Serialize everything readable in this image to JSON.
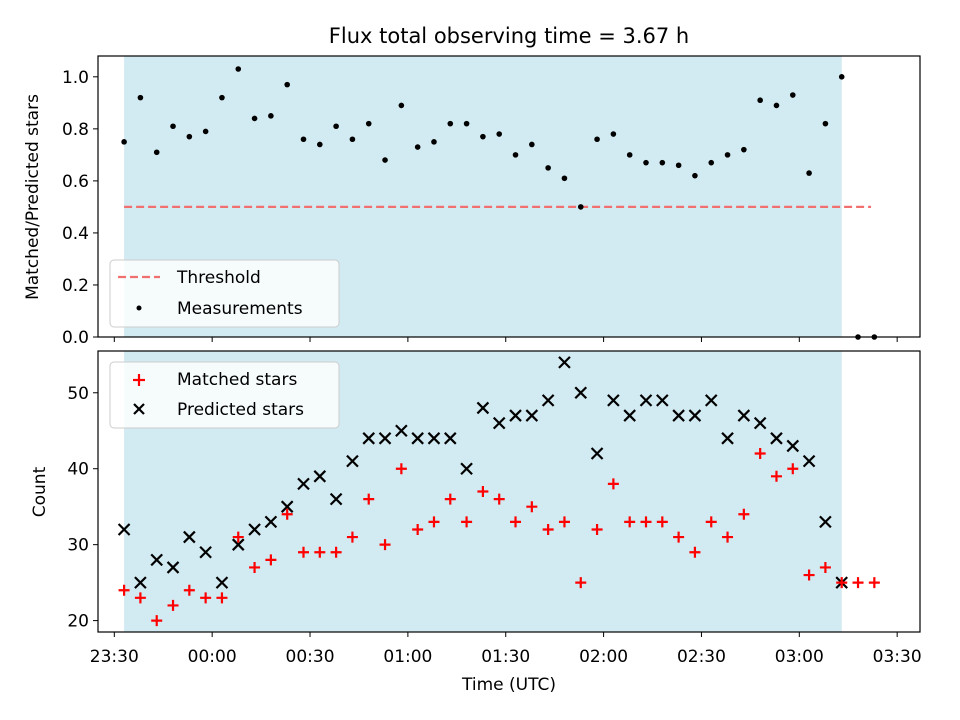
{
  "chart_data": {
    "type": "scatter",
    "title": "Flux total observing time = 3.67 h",
    "xlabel": "Time (UTC)",
    "x_ticks": [
      "23:30",
      "00:00",
      "00:30",
      "01:00",
      "01:30",
      "02:00",
      "02:30",
      "03:00",
      "03:30"
    ],
    "x_range": [
      "23:25",
      "03:37"
    ],
    "observing_window": [
      "23:33",
      "03:13"
    ],
    "colors": {
      "threshold": "#f07070",
      "window": "#add8e6",
      "matched": "#ff0000",
      "predicted": "#000000",
      "measurements": "#000000"
    },
    "times": [
      "23:33",
      "23:38",
      "23:43",
      "23:48",
      "23:53",
      "23:58",
      "00:03",
      "00:08",
      "00:13",
      "00:18",
      "00:23",
      "00:28",
      "00:33",
      "00:38",
      "00:43",
      "00:48",
      "00:53",
      "00:58",
      "01:03",
      "01:08",
      "01:13",
      "01:18",
      "01:23",
      "01:28",
      "01:33",
      "01:38",
      "01:43",
      "01:48",
      "01:53",
      "01:58",
      "02:03",
      "02:08",
      "02:13",
      "02:18",
      "02:23",
      "02:28",
      "02:33",
      "02:38",
      "02:43",
      "02:48",
      "02:53",
      "02:58",
      "03:03",
      "03:08",
      "03:13",
      "03:18",
      "03:23"
    ],
    "top": {
      "ylabel": "Matched/Predicted stars",
      "ylim": [
        0.0,
        1.08
      ],
      "y_ticks": [
        "0.0",
        "0.2",
        "0.4",
        "0.6",
        "0.8",
        "1.0"
      ],
      "threshold": {
        "name": "Threshold",
        "value": 0.5,
        "x_range": [
          "23:33",
          "03:22"
        ]
      },
      "series": [
        {
          "name": "Measurements",
          "values": [
            0.75,
            0.92,
            0.71,
            0.81,
            0.77,
            0.79,
            0.92,
            1.03,
            0.84,
            0.85,
            0.97,
            0.76,
            0.74,
            0.81,
            0.76,
            0.82,
            0.68,
            0.89,
            0.73,
            0.75,
            0.82,
            0.82,
            0.77,
            0.78,
            0.7,
            0.74,
            0.65,
            0.61,
            0.5,
            0.76,
            0.78,
            0.7,
            0.67,
            0.67,
            0.66,
            0.62,
            0.67,
            0.7,
            0.72,
            0.91,
            0.89,
            0.93,
            0.63,
            0.82,
            1.0,
            0.0,
            0.0
          ]
        }
      ],
      "legend": [
        "Threshold",
        "Measurements"
      ],
      "legend_position": "lower-left"
    },
    "bottom": {
      "ylabel": "Count",
      "ylim": [
        18.5,
        55.5
      ],
      "y_ticks": [
        "20",
        "30",
        "40",
        "50"
      ],
      "series": [
        {
          "name": "Matched stars",
          "values": [
            24,
            23,
            20,
            22,
            24,
            23,
            23,
            31,
            27,
            28,
            34,
            29,
            29,
            29,
            31,
            36,
            30,
            40,
            32,
            33,
            36,
            33,
            37,
            36,
            33,
            35,
            32,
            33,
            25,
            32,
            38,
            33,
            33,
            33,
            31,
            29,
            33,
            31,
            34,
            42,
            39,
            40,
            26,
            27,
            25,
            25,
            25
          ]
        },
        {
          "name": "Predicted stars",
          "values": [
            32,
            25,
            28,
            27,
            31,
            29,
            25,
            30,
            32,
            33,
            35,
            38,
            39,
            36,
            41,
            44,
            44,
            45,
            44,
            44,
            44,
            40,
            48,
            46,
            47,
            47,
            49,
            54,
            50,
            42,
            49,
            47,
            49,
            49,
            47,
            47,
            49,
            44,
            47,
            46,
            44,
            43,
            41,
            33,
            25
          ]
        }
      ],
      "legend": [
        "Matched stars",
        "Predicted stars"
      ],
      "legend_position": "upper-left"
    }
  }
}
